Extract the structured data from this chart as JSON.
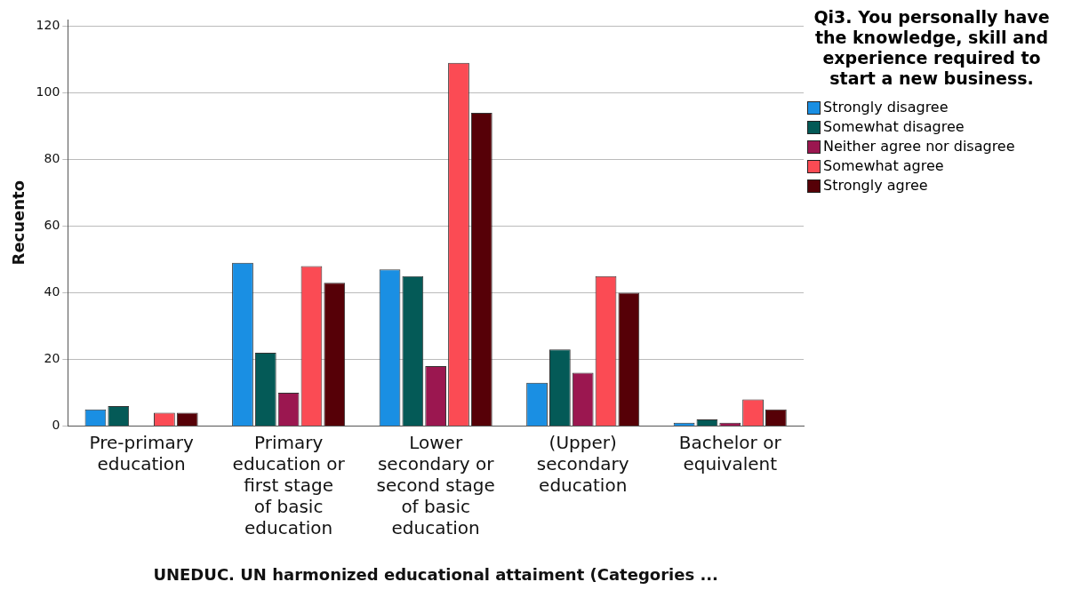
{
  "chart_data": {
    "type": "bar",
    "categories": [
      "Pre-primary education",
      "Primary education or first stage of basic education",
      "Lower secondary or second stage of basic education",
      "(Upper) secondary education",
      "Bachelor or equivalent"
    ],
    "series": [
      {
        "name": "Strongly disagree",
        "color": "#1a8fe3",
        "values": [
          5,
          49,
          47,
          13,
          1
        ]
      },
      {
        "name": "Somewhat disagree",
        "color": "#045a57",
        "values": [
          6,
          22,
          45,
          23,
          2
        ]
      },
      {
        "name": "Neither agree nor disagree",
        "color": "#9b1750",
        "values": [
          null,
          10,
          18,
          16,
          1
        ]
      },
      {
        "name": "Somewhat agree",
        "color": "#fb4b54",
        "values": [
          4,
          48,
          109,
          45,
          8
        ]
      },
      {
        "name": "Strongly agree",
        "color": "#560007",
        "values": [
          4,
          43,
          94,
          40,
          5
        ]
      }
    ],
    "xlabel": "UNEDUC. UN harmonized educational attaiment (Categories ...",
    "ylabel": "Recuento",
    "legend_title": "Qi3.  You personally have the knowledge, skill and experience required to start a new business.",
    "ylim": [
      0,
      122
    ],
    "yticks": [
      0,
      20,
      40,
      60,
      80,
      100,
      120
    ],
    "grid": "y",
    "legend": "top right"
  }
}
